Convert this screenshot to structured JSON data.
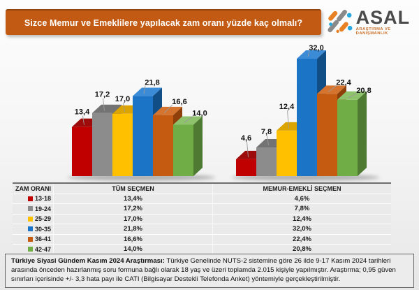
{
  "title": {
    "text": "Sizce Memur ve Emeklilere yapılacak zam oranı yüzde kaç olmalı?"
  },
  "logo": {
    "name": "ASAL",
    "subtitle": "ARAŞTIRMA VE DANIŞMANLIK"
  },
  "chart_data": {
    "type": "bar",
    "style": "3d-column",
    "title": "Sizce Memur ve Emeklilere yapılacak zam oranı yüzde kaç olmalı?",
    "categories": [
      "13-18",
      "19-24",
      "25-29",
      "30-35",
      "36-41",
      "42-47"
    ],
    "series": [
      {
        "name": "TÜM SEÇMEN",
        "values": [
          13.4,
          17.2,
          17.0,
          21.8,
          16.6,
          14.0
        ],
        "labels": [
          "13,4",
          "17,2",
          "17,0",
          "21,8",
          "16,6",
          "14,0"
        ]
      },
      {
        "name": "MEMUR-EMEKLİ SEÇMEN",
        "values": [
          4.6,
          7.8,
          12.4,
          32.0,
          22.4,
          20.8
        ],
        "labels": [
          "4,6",
          "7,8",
          "12,4",
          "32,0",
          "22,4",
          "20,8"
        ]
      }
    ],
    "xlabel": "ZAM ORANI",
    "ylabel": "",
    "ylim": [
      0,
      35
    ],
    "grid": false,
    "legend_position": "data-table-below",
    "colors": [
      {
        "category": "13-18",
        "front": "#C00000",
        "top": "#9E0B0B",
        "side": "#7E0000"
      },
      {
        "category": "19-24",
        "front": "#8C8C8C",
        "top": "#737373",
        "side": "#5E5E5E"
      },
      {
        "category": "25-29",
        "front": "#FFC000",
        "top": "#DBA400",
        "side": "#A87E00"
      },
      {
        "category": "30-35",
        "front": "#1B74C5",
        "top": "#3C8BD6",
        "side": "#124E86"
      },
      {
        "category": "36-41",
        "front": "#C55A11",
        "top": "#D4742F",
        "side": "#8E3F0A"
      },
      {
        "category": "42-47",
        "front": "#70AD47",
        "top": "#8FC26C",
        "side": "#4E7A31"
      }
    ]
  },
  "table": {
    "col1_header": "ZAM ORANI",
    "rows": [
      {
        "range": "13-18",
        "tum": "13,4%",
        "memur": "4,6%"
      },
      {
        "range": "19-24",
        "tum": "17,2%",
        "memur": "7,8%"
      },
      {
        "range": "25-29",
        "tum": "17,0%",
        "memur": "12,4%"
      },
      {
        "range": "30-35",
        "tum": "21,8%",
        "memur": "32,0%"
      },
      {
        "range": "36-41",
        "tum": "16,6%",
        "memur": "22,4%"
      },
      {
        "range": "42-47",
        "tum": "14,0%",
        "memur": "20,8%"
      }
    ]
  },
  "source": {
    "bold": "Türkiye Siyasi Gündem Kasım 2024 Araştırması:",
    "text": "Türkiye Genelinde  NUTS-2 sistemine göre 26 ilde 9-17 Kasım 2024 tarihleri arasında önceden hazırlanmış soru formuna bağlı olarak 18 yaş ve üzeri toplamda 2.015 kişiyle yapılmıştır. Araştırma; 0,95 güven sınırları içerisinde +/- 3,3 hata payı ile CATI (Bilgisayar Destekli Telefonda Anket) yöntemiyle gerçekleştirilmiştir."
  }
}
